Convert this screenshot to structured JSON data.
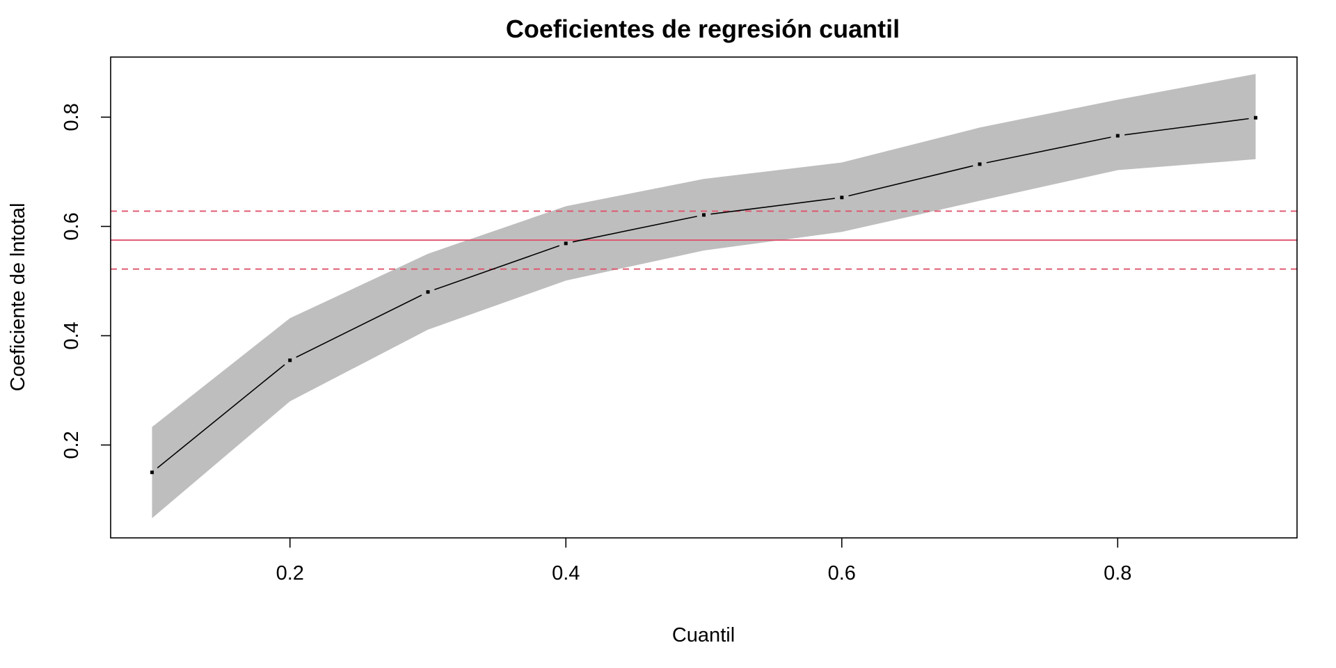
{
  "chart_data": {
    "type": "line",
    "title": "Coeficientes de regresión cuantil",
    "xlabel": "Cuantil",
    "ylabel": "Coeficiente de lntotal",
    "xlim": [
      0.07,
      0.93
    ],
    "ylim": [
      0.03,
      0.91
    ],
    "x_ticks": [
      0.2,
      0.4,
      0.6,
      0.8
    ],
    "x_tick_labels": [
      "0.2",
      "0.4",
      "0.6",
      "0.8"
    ],
    "y_ticks": [
      0.2,
      0.4,
      0.6,
      0.8
    ],
    "y_tick_labels": [
      "0.2",
      "0.4",
      "0.6",
      "0.8"
    ],
    "grid": false,
    "legend": "none",
    "x": [
      0.1,
      0.2,
      0.3,
      0.4,
      0.5,
      0.6,
      0.7,
      0.8,
      0.9
    ],
    "series": [
      {
        "role": "estimate",
        "values": [
          0.15,
          0.355,
          0.48,
          0.569,
          0.621,
          0.653,
          0.714,
          0.766,
          0.799
        ],
        "color": "#000000"
      }
    ],
    "confidence_band": {
      "lower": [
        0.066,
        0.28,
        0.411,
        0.501,
        0.556,
        0.59,
        0.647,
        0.703,
        0.723
      ],
      "upper": [
        0.233,
        0.432,
        0.55,
        0.637,
        0.687,
        0.717,
        0.781,
        0.832,
        0.879
      ],
      "color": "#bebebe"
    },
    "reference_lines": {
      "estimate": 0.575,
      "lower": 0.522,
      "upper": 0.628,
      "color": "#df536b"
    }
  }
}
